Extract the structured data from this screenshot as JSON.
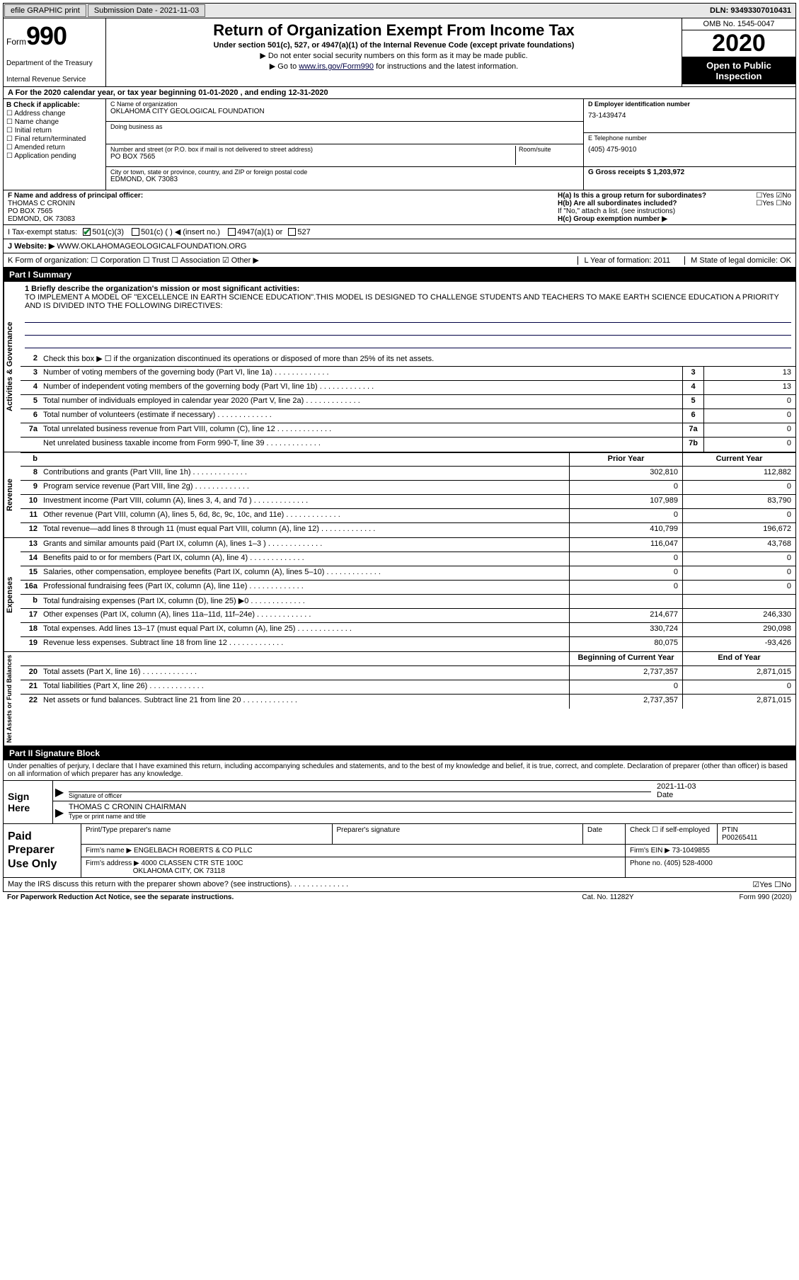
{
  "topbar": {
    "efile": "efile GRAPHIC print",
    "submission_label": "Submission Date - 2021-11-03",
    "dln": "DLN: 93493307010431"
  },
  "header": {
    "form_word": "Form",
    "form_number": "990",
    "dept1": "Department of the Treasury",
    "dept2": "Internal Revenue Service",
    "title": "Return of Organization Exempt From Income Tax",
    "subtitle": "Under section 501(c), 527, or 4947(a)(1) of the Internal Revenue Code (except private foundations)",
    "note1": "▶ Do not enter social security numbers on this form as it may be made public.",
    "note2_pre": "▶ Go to ",
    "note2_link": "www.irs.gov/Form990",
    "note2_post": " for instructions and the latest information.",
    "omb": "OMB No. 1545-0047",
    "year": "2020",
    "open": "Open to Public Inspection"
  },
  "line_a": "A For the 2020 calendar year, or tax year beginning 01-01-2020    , and ending 12-31-2020",
  "col_b": {
    "header": "B Check if applicable:",
    "opts": [
      "Address change",
      "Name change",
      "Initial return",
      "Final return/terminated",
      "Amended return",
      "Application pending"
    ]
  },
  "col_c": {
    "name_lbl": "C Name of organization",
    "name_val": "OKLAHOMA CITY GEOLOGICAL FOUNDATION",
    "dba_lbl": "Doing business as",
    "street_lbl": "Number and street (or P.O. box if mail is not delivered to street address)",
    "street_val": "PO BOX 7565",
    "room_lbl": "Room/suite",
    "city_lbl": "City or town, state or province, country, and ZIP or foreign postal code",
    "city_val": "EDMOND, OK  73083",
    "d_lbl": "D Employer identification number",
    "d_val": "73-1439474",
    "e_lbl": "E Telephone number",
    "e_val": "(405) 475-9010",
    "g_lbl": "G Gross receipts $ 1,203,972"
  },
  "f_section": {
    "f_lbl": "F  Name and address of principal officer:",
    "f_name": "THOMAS C CRONIN",
    "f_addr1": "PO BOX 7565",
    "f_addr2": "EDMOND, OK  73083",
    "ha": "H(a)  Is this a group return for subordinates?",
    "ha_ans": "☐Yes ☑No",
    "hb": "H(b)  Are all subordinates included?",
    "hb_ans": "☐Yes ☐No",
    "hb_note": "If \"No,\" attach a list. (see instructions)",
    "hc": "H(c)  Group exemption number ▶"
  },
  "tax_status": {
    "label": "I   Tax-exempt status:",
    "opt1": "501(c)(3)",
    "opt2": "501(c) (  ) ◀ (insert no.)",
    "opt3": "4947(a)(1) or",
    "opt4": "527"
  },
  "website": {
    "label": "J   Website: ▶",
    "val": "WWW.OKLAHOMAGEOLOGICALFOUNDATION.ORG"
  },
  "kform": {
    "k": "K Form of organization:  ☐ Corporation  ☐ Trust  ☐ Association  ☑ Other ▶",
    "l": "L Year of formation: 2011",
    "m": "M State of legal domicile: OK"
  },
  "part1": {
    "header": "Part I      Summary",
    "q1": "1  Briefly describe the organization's mission or most significant activities:",
    "mission": "TO IMPLEMENT A MODEL OF \"EXCELLENCE IN EARTH SCIENCE EDUCATION\".THIS MODEL IS DESIGNED TO CHALLENGE STUDENTS AND TEACHERS TO MAKE EARTH SCIENCE EDUCATION A PRIORITY AND IS DIVIDED INTO THE FOLLOWING DIRECTIVES:",
    "q2": "Check this box ▶ ☐  if the organization discontinued its operations or disposed of more than 25% of its net assets.",
    "side_labels": {
      "s1": "Activities & Governance",
      "s2": "Revenue",
      "s3": "Expenses",
      "s4": "Net Assets or Fund Balances"
    },
    "rows_ag": [
      {
        "n": "3",
        "d": "Number of voting members of the governing body (Part VI, line 1a)",
        "box": "3",
        "v": "13"
      },
      {
        "n": "4",
        "d": "Number of independent voting members of the governing body (Part VI, line 1b)",
        "box": "4",
        "v": "13"
      },
      {
        "n": "5",
        "d": "Total number of individuals employed in calendar year 2020 (Part V, line 2a)",
        "box": "5",
        "v": "0"
      },
      {
        "n": "6",
        "d": "Total number of volunteers (estimate if necessary)",
        "box": "6",
        "v": "0"
      },
      {
        "n": "7a",
        "d": "Total unrelated business revenue from Part VIII, column (C), line 12",
        "box": "7a",
        "v": "0"
      },
      {
        "n": "",
        "d": "Net unrelated business taxable income from Form 990-T, line 39",
        "box": "7b",
        "v": "0"
      }
    ],
    "col_headers": {
      "prior": "Prior Year",
      "current": "Current Year"
    },
    "rows_rev": [
      {
        "n": "8",
        "d": "Contributions and grants (Part VIII, line 1h)",
        "pv": "302,810",
        "cv": "112,882"
      },
      {
        "n": "9",
        "d": "Program service revenue (Part VIII, line 2g)",
        "pv": "0",
        "cv": "0"
      },
      {
        "n": "10",
        "d": "Investment income (Part VIII, column (A), lines 3, 4, and 7d )",
        "pv": "107,989",
        "cv": "83,790"
      },
      {
        "n": "11",
        "d": "Other revenue (Part VIII, column (A), lines 5, 6d, 8c, 9c, 10c, and 11e)",
        "pv": "0",
        "cv": "0"
      },
      {
        "n": "12",
        "d": "Total revenue—add lines 8 through 11 (must equal Part VIII, column (A), line 12)",
        "pv": "410,799",
        "cv": "196,672"
      }
    ],
    "rows_exp": [
      {
        "n": "13",
        "d": "Grants and similar amounts paid (Part IX, column (A), lines 1–3 )",
        "pv": "116,047",
        "cv": "43,768"
      },
      {
        "n": "14",
        "d": "Benefits paid to or for members (Part IX, column (A), line 4)",
        "pv": "0",
        "cv": "0"
      },
      {
        "n": "15",
        "d": "Salaries, other compensation, employee benefits (Part IX, column (A), lines 5–10)",
        "pv": "0",
        "cv": "0"
      },
      {
        "n": "16a",
        "d": "Professional fundraising fees (Part IX, column (A), line 11e)",
        "pv": "0",
        "cv": "0"
      },
      {
        "n": "b",
        "d": "Total fundraising expenses (Part IX, column (D), line 25) ▶0",
        "pv": "",
        "cv": "",
        "shaded": true
      },
      {
        "n": "17",
        "d": "Other expenses (Part IX, column (A), lines 11a–11d, 11f–24e)",
        "pv": "214,677",
        "cv": "246,330"
      },
      {
        "n": "18",
        "d": "Total expenses. Add lines 13–17 (must equal Part IX, column (A), line 25)",
        "pv": "330,724",
        "cv": "290,098"
      },
      {
        "n": "19",
        "d": "Revenue less expenses. Subtract line 18 from line 12",
        "pv": "80,075",
        "cv": "-93,426"
      }
    ],
    "net_headers": {
      "begin": "Beginning of Current Year",
      "end": "End of Year"
    },
    "rows_net": [
      {
        "n": "20",
        "d": "Total assets (Part X, line 16)",
        "pv": "2,737,357",
        "cv": "2,871,015"
      },
      {
        "n": "21",
        "d": "Total liabilities (Part X, line 26)",
        "pv": "0",
        "cv": "0"
      },
      {
        "n": "22",
        "d": "Net assets or fund balances. Subtract line 21 from line 20",
        "pv": "2,737,357",
        "cv": "2,871,015"
      }
    ]
  },
  "part2": {
    "header": "Part II     Signature Block",
    "declare": "Under penalties of perjury, I declare that I have examined this return, including accompanying schedules and statements, and to the best of my knowledge and belief, it is true, correct, and complete. Declaration of preparer (other than officer) is based on all information of which preparer has any knowledge.",
    "sign_here": "Sign Here",
    "sig_officer_lbl": "Signature of officer",
    "sig_date": "2021-11-03",
    "date_lbl": "Date",
    "sig_name": "THOMAS C CRONIN  CHAIRMAN",
    "sig_name_lbl": "Type or print name and title",
    "paid": "Paid Preparer Use Only",
    "p_name_lbl": "Print/Type preparer's name",
    "p_sig_lbl": "Preparer's signature",
    "p_date_lbl": "Date",
    "p_check": "Check ☐ if self-employed",
    "ptin_lbl": "PTIN",
    "ptin_val": "P00265411",
    "firm_name_lbl": "Firm's name    ▶",
    "firm_name": "ENGELBACH ROBERTS & CO PLLC",
    "firm_ein_lbl": "Firm's EIN ▶",
    "firm_ein": "73-1049855",
    "firm_addr_lbl": "Firm's address ▶",
    "firm_addr1": "4000 CLASSEN CTR STE 100C",
    "firm_addr2": "OKLAHOMA CITY, OK  73118",
    "phone_lbl": "Phone no.",
    "phone": "(405) 528-4000",
    "discuss": "May the IRS discuss this return with the preparer shown above? (see instructions)",
    "discuss_ans": "☑Yes  ☐No"
  },
  "footer": {
    "f1": "For Paperwork Reduction Act Notice, see the separate instructions.",
    "f2": "Cat. No. 11282Y",
    "f3": "Form 990 (2020)"
  }
}
